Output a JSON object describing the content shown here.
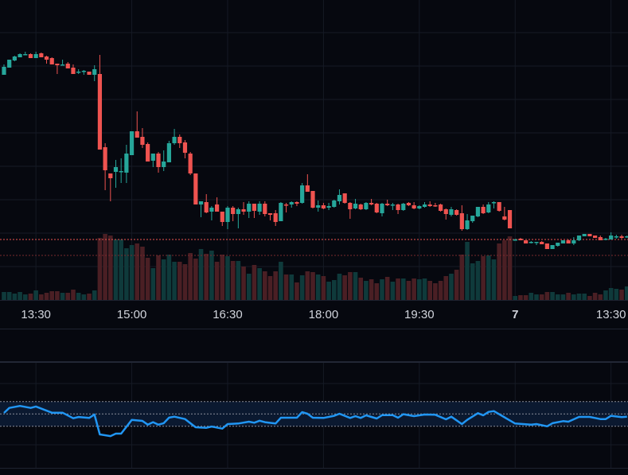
{
  "chart_data": {
    "type": "candlestick",
    "colors": {
      "background": "#06080f",
      "up": "#26a69a",
      "down": "#ef5350",
      "volume_up": "#0f3a3b",
      "volume_down": "#4a1f24",
      "rsi_line": "#2196f3",
      "rsi_band": "#0b1930",
      "grid": "#151a25",
      "last_price_line": "#ef5350",
      "reference_line": "#7a2a2e"
    },
    "grid": true,
    "x_ticks": [
      {
        "bar": 6,
        "label": "13:30"
      },
      {
        "bar": 24,
        "label": "15:00"
      },
      {
        "bar": 42,
        "label": "16:30"
      },
      {
        "bar": 60,
        "label": "18:00"
      },
      {
        "bar": 78,
        "label": "19:30"
      },
      {
        "bar": 96,
        "label": "7"
      },
      {
        "bar": 114,
        "label": "13:30"
      }
    ],
    "price_lines": {
      "last": 99,
      "reference": 79
    },
    "ohlc": [
      [
        306,
        319,
        306,
        316
      ],
      [
        315,
        325,
        315,
        325
      ],
      [
        324,
        330,
        323,
        329
      ],
      [
        328,
        333,
        328,
        332
      ],
      [
        331,
        335,
        331,
        332
      ],
      [
        332,
        333,
        327,
        327
      ],
      [
        327,
        335,
        327,
        332
      ],
      [
        333,
        334,
        328,
        328
      ],
      [
        329,
        330,
        320,
        325
      ],
      [
        327,
        328,
        319,
        319
      ],
      [
        320,
        320,
        307,
        318
      ],
      [
        318,
        325,
        318,
        319
      ],
      [
        320,
        322,
        314,
        314
      ],
      [
        315,
        319,
        307,
        307
      ],
      [
        309,
        313,
        307,
        310
      ],
      [
        310,
        312,
        306,
        311
      ],
      [
        310,
        310,
        306,
        306
      ],
      [
        306,
        318,
        298,
        313
      ],
      [
        307,
        331,
        212,
        212
      ],
      [
        215,
        220,
        161,
        186
      ],
      [
        182,
        182,
        147,
        176
      ],
      [
        184,
        199,
        164,
        190
      ],
      [
        184,
        201,
        170,
        185
      ],
      [
        183,
        218,
        170,
        207
      ],
      [
        205,
        235,
        205,
        235
      ],
      [
        235,
        260,
        227,
        227
      ],
      [
        228,
        239,
        214,
        218
      ],
      [
        219,
        221,
        197,
        197
      ],
      [
        198,
        207,
        190,
        207
      ],
      [
        207,
        209,
        183,
        190
      ],
      [
        190,
        211,
        185,
        197
      ],
      [
        196,
        223,
        196,
        220
      ],
      [
        220,
        238,
        218,
        228
      ],
      [
        228,
        231,
        214,
        220
      ],
      [
        221,
        224,
        201,
        208
      ],
      [
        207,
        209,
        180,
        182
      ],
      [
        182,
        182,
        143,
        143
      ],
      [
        143,
        147,
        127,
        147
      ],
      [
        146,
        156,
        132,
        133
      ],
      [
        134,
        141,
        123,
        139
      ],
      [
        143,
        152,
        134,
        134
      ],
      [
        134,
        134,
        116,
        121
      ],
      [
        121,
        141,
        112,
        139
      ],
      [
        139,
        141,
        122,
        131
      ],
      [
        131,
        139,
        113,
        137
      ],
      [
        137,
        146,
        130,
        134
      ],
      [
        134,
        147,
        126,
        144
      ],
      [
        144,
        144,
        126,
        135
      ],
      [
        134,
        147,
        130,
        144
      ],
      [
        144,
        147,
        128,
        131
      ],
      [
        132,
        132,
        123,
        130
      ],
      [
        132,
        136,
        116,
        121
      ],
      [
        122,
        146,
        122,
        145
      ],
      [
        143,
        145,
        133,
        142
      ],
      [
        143,
        147,
        139,
        146
      ],
      [
        146,
        147,
        141,
        144
      ],
      [
        145,
        170,
        144,
        167
      ],
      [
        167,
        181,
        159,
        159
      ],
      [
        160,
        160,
        138,
        139
      ],
      [
        139,
        148,
        134,
        142
      ],
      [
        142,
        145,
        137,
        138
      ],
      [
        139,
        145,
        136,
        141
      ],
      [
        140,
        149,
        139,
        148
      ],
      [
        147,
        162,
        143,
        155
      ],
      [
        157,
        157,
        144,
        145
      ],
      [
        145,
        146,
        125,
        137
      ],
      [
        138,
        150,
        137,
        144
      ],
      [
        143,
        144,
        136,
        137
      ],
      [
        137,
        146,
        136,
        145
      ],
      [
        145,
        150,
        142,
        143
      ],
      [
        144,
        145,
        132,
        133
      ],
      [
        132,
        145,
        128,
        144
      ],
      [
        144,
        149,
        141,
        142
      ],
      [
        143,
        145,
        136,
        143
      ],
      [
        143,
        144,
        131,
        136
      ],
      [
        136,
        145,
        135,
        144
      ],
      [
        145,
        146,
        141,
        142
      ],
      [
        142,
        146,
        137,
        138
      ],
      [
        138,
        142,
        137,
        141
      ],
      [
        140,
        146,
        139,
        143
      ],
      [
        143,
        147,
        140,
        141
      ],
      [
        142,
        145,
        140,
        141
      ],
      [
        143,
        144,
        134,
        135
      ],
      [
        137,
        138,
        124,
        131
      ],
      [
        130,
        140,
        128,
        137
      ],
      [
        136,
        137,
        129,
        130
      ],
      [
        132,
        142,
        110,
        112
      ],
      [
        112,
        131,
        111,
        123
      ],
      [
        122,
        129,
        120,
        129
      ],
      [
        128,
        140,
        127,
        140
      ],
      [
        140,
        143,
        131,
        132
      ],
      [
        133,
        146,
        132,
        143
      ],
      [
        145,
        147,
        138,
        146
      ],
      [
        146,
        146,
        134,
        135
      ],
      [
        128,
        140,
        123,
        124
      ],
      [
        136,
        136,
        113,
        113
      ],
      [
        98,
        100,
        98,
        99
      ],
      [
        100,
        101,
        98,
        98
      ],
      [
        98,
        98,
        94,
        94
      ],
      [
        95,
        97,
        94,
        96
      ],
      [
        95,
        96,
        92,
        96
      ],
      [
        96,
        97,
        93,
        93
      ],
      [
        94,
        94,
        87,
        87
      ],
      [
        87,
        92,
        87,
        92
      ],
      [
        91,
        95,
        90,
        95
      ],
      [
        94,
        98,
        94,
        98
      ],
      [
        98,
        99,
        94,
        94
      ],
      [
        94,
        102,
        92,
        98
      ],
      [
        98,
        104,
        97,
        104
      ],
      [
        103,
        106,
        103,
        106
      ],
      [
        106,
        106,
        103,
        103
      ],
      [
        104,
        104,
        101,
        101
      ],
      [
        102,
        104,
        98,
        98
      ],
      [
        99,
        101,
        98,
        100
      ],
      [
        99,
        108,
        99,
        104
      ],
      [
        102,
        105,
        100,
        103
      ],
      [
        103,
        105,
        100,
        101
      ],
      [
        102,
        104,
        101,
        103
      ]
    ],
    "volume": [
      10,
      10,
      8,
      10,
      7,
      8,
      12,
      7,
      9,
      11,
      11,
      9,
      9,
      13,
      9,
      7,
      8,
      12,
      78,
      83,
      81,
      76,
      76,
      65,
      69,
      71,
      67,
      53,
      40,
      56,
      51,
      57,
      48,
      48,
      45,
      59,
      52,
      64,
      58,
      62,
      48,
      57,
      55,
      49,
      49,
      42,
      33,
      44,
      40,
      36,
      30,
      36,
      48,
      32,
      32,
      22,
      31,
      36,
      35,
      32,
      30,
      23,
      25,
      33,
      31,
      35,
      35,
      28,
      24,
      26,
      21,
      26,
      29,
      23,
      27,
      27,
      24,
      27,
      26,
      27,
      24,
      21,
      24,
      30,
      33,
      38,
      57,
      73,
      46,
      49,
      55,
      56,
      51,
      71,
      75,
      80,
      5,
      6,
      6,
      9,
      7,
      7,
      10,
      10,
      7,
      7,
      9,
      7,
      8,
      8,
      5,
      9,
      7,
      12,
      15,
      14,
      13,
      17
    ],
    "rsi": {
      "levels": [
        70,
        50,
        30
      ],
      "points": [
        [
          0,
          51.6
        ],
        [
          1,
          59.7
        ],
        [
          3,
          63
        ],
        [
          5,
          59.7
        ],
        [
          6,
          62
        ],
        [
          9,
          52
        ],
        [
          11,
          52
        ],
        [
          13,
          43
        ],
        [
          14,
          45
        ],
        [
          16,
          43.5
        ],
        [
          17,
          49
        ],
        [
          18,
          16.8
        ],
        [
          20,
          14
        ],
        [
          21,
          18
        ],
        [
          22,
          18
        ],
        [
          24,
          40.4
        ],
        [
          26,
          38.7
        ],
        [
          27,
          32.7
        ],
        [
          28,
          36.6
        ],
        [
          29,
          32.7
        ],
        [
          30,
          35
        ],
        [
          31,
          44
        ],
        [
          32,
          45.6
        ],
        [
          34,
          41.7
        ],
        [
          36,
          28.4
        ],
        [
          38,
          27.5
        ],
        [
          39,
          29.6
        ],
        [
          41,
          26.2
        ],
        [
          42,
          33.5
        ],
        [
          44,
          34.4
        ],
        [
          46,
          37.4
        ],
        [
          47,
          35.7
        ],
        [
          48,
          39
        ],
        [
          49,
          36.6
        ],
        [
          51,
          34.4
        ],
        [
          52,
          43.9
        ],
        [
          55,
          43.9
        ],
        [
          56,
          52.9
        ],
        [
          57,
          50.3
        ],
        [
          58,
          43.9
        ],
        [
          60,
          43.5
        ],
        [
          62,
          47
        ],
        [
          63,
          50.3
        ],
        [
          65,
          43.5
        ],
        [
          66,
          46.5
        ],
        [
          67,
          43.5
        ],
        [
          68,
          47.7
        ],
        [
          70,
          42.6
        ],
        [
          71,
          48
        ],
        [
          73,
          48
        ],
        [
          74,
          43.9
        ],
        [
          75,
          49.5
        ],
        [
          77,
          46.5
        ],
        [
          79,
          49
        ],
        [
          81,
          48.6
        ],
        [
          83,
          41.3
        ],
        [
          84,
          45.6
        ],
        [
          86,
          33.5
        ],
        [
          87,
          40.4
        ],
        [
          89,
          51.2
        ],
        [
          90,
          47.7
        ],
        [
          91,
          53.3
        ],
        [
          92,
          54.6
        ],
        [
          96,
          34.4
        ],
        [
          99,
          32.7
        ],
        [
          100,
          33.5
        ],
        [
          102,
          30
        ],
        [
          103,
          35
        ],
        [
          105,
          38.3
        ],
        [
          106,
          37.4
        ],
        [
          108,
          45.2
        ],
        [
          110,
          45.2
        ],
        [
          112,
          41.7
        ],
        [
          113,
          41.7
        ],
        [
          114,
          47
        ],
        [
          116,
          44.8
        ],
        [
          117,
          45.6
        ]
      ]
    }
  }
}
